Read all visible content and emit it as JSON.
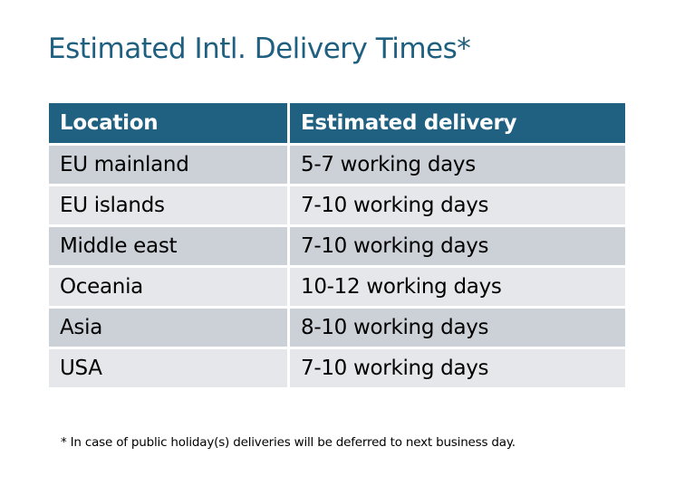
{
  "title": "Estimated Intl. Delivery Times*",
  "table": {
    "headers": [
      "Location",
      "Estimated delivery"
    ],
    "rows": [
      [
        "EU mainland",
        "5-7 working days"
      ],
      [
        "EU islands",
        "7-10 working days"
      ],
      [
        "Middle east",
        "7-10 working days"
      ],
      [
        "Oceania",
        "10-12 working days"
      ],
      [
        "Asia",
        "8-10 working days"
      ],
      [
        "USA",
        "7-10 working days"
      ]
    ]
  },
  "footnote": "* In case of public holiday(s) deliveries will be deferred to next business day.",
  "colors": {
    "header": "#206080",
    "title": "#1f5f7f",
    "row_dark": "#ccd1d8",
    "row_light": "#e5e7ea"
  }
}
